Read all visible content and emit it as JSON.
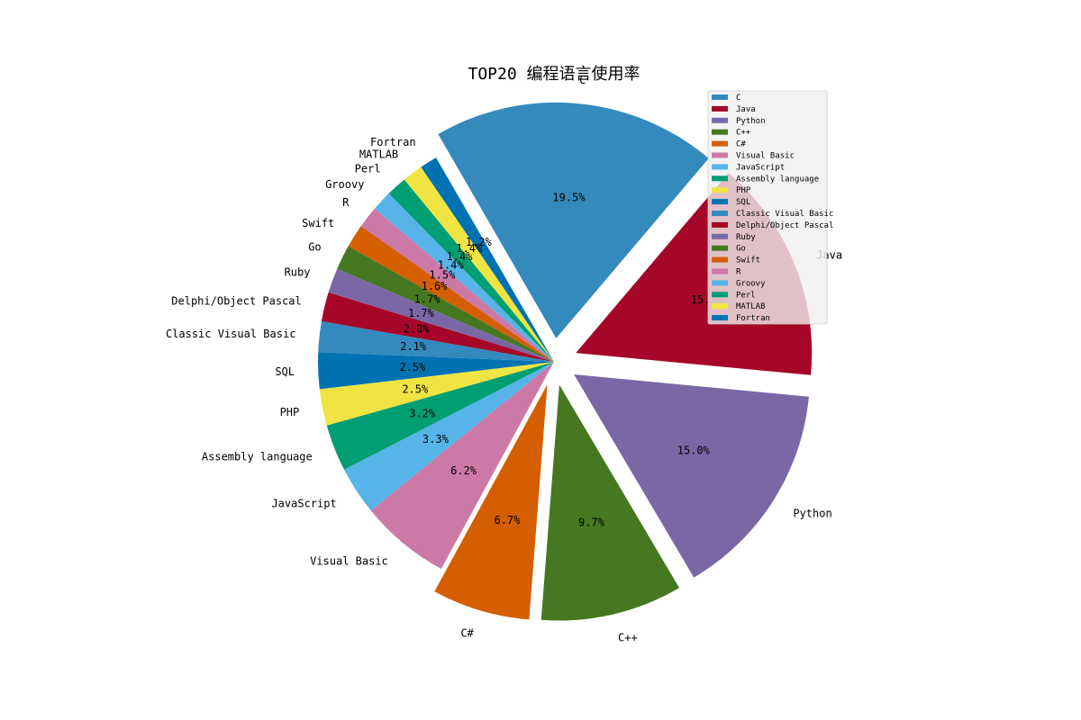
{
  "chart_data": {
    "type": "pie",
    "title": "TOP20 编程语言使用率",
    "legend_position": "upper-right",
    "slices": [
      {
        "label": "C",
        "value": 19.5,
        "pct_label": "19.5%",
        "color": "#348abd",
        "explode": true
      },
      {
        "label": "Java",
        "value": 15.3,
        "pct_label": "15.3%",
        "color": "#a60628",
        "explode": true
      },
      {
        "label": "Python",
        "value": 15.0,
        "pct_label": "15.0%",
        "color": "#7a68a6",
        "explode": true
      },
      {
        "label": "C++",
        "value": 9.7,
        "pct_label": "9.7%",
        "color": "#467821",
        "explode": true
      },
      {
        "label": "C#",
        "value": 6.7,
        "pct_label": "6.7%",
        "color": "#d55e00",
        "explode": true
      },
      {
        "label": "Visual Basic",
        "value": 6.2,
        "pct_label": "6.2%",
        "color": "#cc79a7",
        "explode": false
      },
      {
        "label": "JavaScript",
        "value": 3.3,
        "pct_label": "3.3%",
        "color": "#56b4e9",
        "explode": false
      },
      {
        "label": "Assembly language",
        "value": 3.2,
        "pct_label": "3.2%",
        "color": "#009e73",
        "explode": false
      },
      {
        "label": "PHP",
        "value": 2.5,
        "pct_label": "2.5%",
        "color": "#f0e442",
        "explode": false
      },
      {
        "label": "SQL",
        "value": 2.5,
        "pct_label": "2.5%",
        "color": "#0072b2",
        "explode": false
      },
      {
        "label": "Classic Visual Basic",
        "value": 2.1,
        "pct_label": "2.1%",
        "color": "#348abd",
        "explode": false
      },
      {
        "label": "Delphi/Object Pascal",
        "value": 2.0,
        "pct_label": "2.0%",
        "color": "#a60628",
        "explode": false
      },
      {
        "label": "Ruby",
        "value": 1.7,
        "pct_label": "1.7%",
        "color": "#7a68a6",
        "explode": false
      },
      {
        "label": "Go",
        "value": 1.7,
        "pct_label": "1.7%",
        "color": "#467821",
        "explode": false
      },
      {
        "label": "Swift",
        "value": 1.6,
        "pct_label": "1.6%",
        "color": "#d55e00",
        "explode": false
      },
      {
        "label": "R",
        "value": 1.5,
        "pct_label": "1.5%",
        "color": "#cc79a7",
        "explode": false
      },
      {
        "label": "Groovy",
        "value": 1.4,
        "pct_label": "1.4%",
        "color": "#56b4e9",
        "explode": false
      },
      {
        "label": "Perl",
        "value": 1.4,
        "pct_label": "1.4%",
        "color": "#009e73",
        "explode": false
      },
      {
        "label": "MATLAB",
        "value": 1.4,
        "pct_label": "1.4%",
        "color": "#f0e442",
        "explode": false
      },
      {
        "label": "Fortran",
        "value": 1.2,
        "pct_label": "1.2%",
        "color": "#0072b2",
        "explode": false
      }
    ]
  }
}
